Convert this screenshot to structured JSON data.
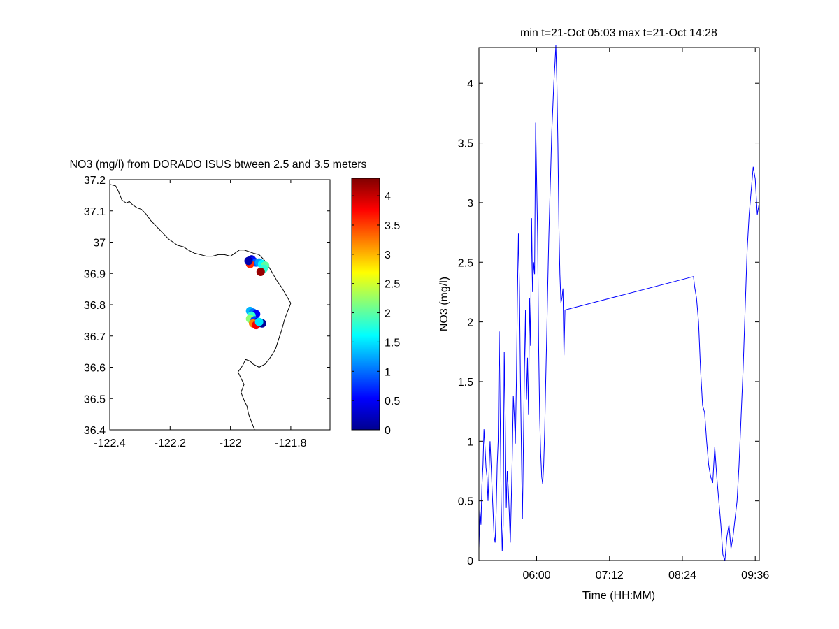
{
  "chart_data": [
    {
      "type": "scatter",
      "title": "NO3 (mg/l) from DORADO ISUS btween 2.5 and 3.5 meters",
      "xlabel": "",
      "ylabel": "",
      "xlim": [
        -122.4,
        -121.67
      ],
      "ylim": [
        36.4,
        37.2
      ],
      "x_ticks": [
        "-122.4",
        "-122.2",
        "-122",
        "-121.8"
      ],
      "y_ticks": [
        "36.4",
        "36.5",
        "36.6",
        "36.7",
        "36.8",
        "36.9",
        "37",
        "37.1",
        "37.2"
      ],
      "colorbar": {
        "range": [
          0,
          4.3
        ],
        "ticks": [
          "0",
          "0.5",
          "1",
          "1.5",
          "2",
          "2.5",
          "3",
          "3.5",
          "4"
        ],
        "colormap": "jet"
      },
      "coastline": [
        [
          -122.4,
          37.185
        ],
        [
          -122.38,
          37.18
        ],
        [
          -122.37,
          37.16
        ],
        [
          -122.36,
          37.135
        ],
        [
          -122.345,
          37.125
        ],
        [
          -122.335,
          37.13
        ],
        [
          -122.325,
          37.12
        ],
        [
          -122.31,
          37.11
        ],
        [
          -122.295,
          37.105
        ],
        [
          -122.28,
          37.09
        ],
        [
          -122.265,
          37.07
        ],
        [
          -122.25,
          37.055
        ],
        [
          -122.235,
          37.04
        ],
        [
          -122.22,
          37.025
        ],
        [
          -122.205,
          37.01
        ],
        [
          -122.19,
          37.0
        ],
        [
          -122.175,
          36.99
        ],
        [
          -122.155,
          36.985
        ],
        [
          -122.14,
          36.975
        ],
        [
          -122.12,
          36.965
        ],
        [
          -122.1,
          36.96
        ],
        [
          -122.08,
          36.955
        ],
        [
          -122.06,
          36.955
        ],
        [
          -122.04,
          36.96
        ],
        [
          -122.02,
          36.96
        ],
        [
          -122.0,
          36.955
        ],
        [
          -121.985,
          36.965
        ],
        [
          -121.97,
          36.975
        ],
        [
          -121.955,
          36.975
        ],
        [
          -121.94,
          36.97
        ],
        [
          -121.925,
          36.965
        ],
        [
          -121.905,
          36.96
        ],
        [
          -121.89,
          36.945
        ],
        [
          -121.875,
          36.925
        ],
        [
          -121.86,
          36.9
        ],
        [
          -121.845,
          36.875
        ],
        [
          -121.83,
          36.855
        ],
        [
          -121.815,
          36.83
        ],
        [
          -121.8,
          36.805
        ],
        [
          -121.81,
          36.78
        ],
        [
          -121.82,
          36.755
        ],
        [
          -121.83,
          36.72
        ],
        [
          -121.84,
          36.69
        ],
        [
          -121.85,
          36.66
        ],
        [
          -121.865,
          36.635
        ],
        [
          -121.885,
          36.61
        ],
        [
          -121.905,
          36.6
        ],
        [
          -121.925,
          36.61
        ],
        [
          -121.935,
          36.62
        ],
        [
          -121.95,
          36.625
        ],
        [
          -121.96,
          36.605
        ],
        [
          -121.975,
          36.585
        ],
        [
          -121.965,
          36.565
        ],
        [
          -121.955,
          36.545
        ],
        [
          -121.965,
          36.52
        ],
        [
          -121.955,
          36.495
        ],
        [
          -121.945,
          36.475
        ],
        [
          -121.94,
          36.45
        ],
        [
          -121.93,
          36.425
        ],
        [
          -121.92,
          36.4
        ]
      ],
      "points": [
        {
          "lon": -121.93,
          "lat": 36.945,
          "v": 0.3
        },
        {
          "lon": -121.925,
          "lat": 36.94,
          "v": 0.6
        },
        {
          "lon": -121.915,
          "lat": 36.935,
          "v": 0.9
        },
        {
          "lon": -121.905,
          "lat": 36.935,
          "v": 1.2
        },
        {
          "lon": -121.895,
          "lat": 36.93,
          "v": 1.6
        },
        {
          "lon": -121.885,
          "lat": 36.925,
          "v": 2.0
        },
        {
          "lon": -121.89,
          "lat": 36.915,
          "v": 1.8
        },
        {
          "lon": -121.9,
          "lat": 36.905,
          "v": 4.2
        },
        {
          "lon": -121.935,
          "lat": 36.93,
          "v": 3.6
        },
        {
          "lon": -121.94,
          "lat": 36.94,
          "v": 0.2
        },
        {
          "lon": -121.935,
          "lat": 36.78,
          "v": 1.3
        },
        {
          "lon": -121.925,
          "lat": 36.775,
          "v": 1.0
        },
        {
          "lon": -121.915,
          "lat": 36.77,
          "v": 0.5
        },
        {
          "lon": -121.93,
          "lat": 36.765,
          "v": 1.8
        },
        {
          "lon": -121.935,
          "lat": 36.755,
          "v": 2.2
        },
        {
          "lon": -121.92,
          "lat": 36.75,
          "v": 0.8
        },
        {
          "lon": -121.91,
          "lat": 36.745,
          "v": 0.3
        },
        {
          "lon": -121.925,
          "lat": 36.74,
          "v": 3.2
        },
        {
          "lon": -121.915,
          "lat": 36.735,
          "v": 3.8
        },
        {
          "lon": -121.895,
          "lat": 36.74,
          "v": 0.1
        },
        {
          "lon": -121.905,
          "lat": 36.745,
          "v": 1.5
        }
      ]
    },
    {
      "type": "line",
      "title": "min t=21-Oct 05:03 max t=21-Oct 14:28",
      "xlabel": "Time (HH:MM)",
      "ylabel": "NO3 (mg/l)",
      "xlim": [
        "05:03",
        "09:40"
      ],
      "ylim": [
        0,
        4.3
      ],
      "x_ticks": [
        "06:00",
        "07:12",
        "08:24",
        "09:36"
      ],
      "y_ticks": [
        "0",
        "0.5",
        "1",
        "1.5",
        "2",
        "2.5",
        "3",
        "3.5",
        "4"
      ],
      "color": "#0000ff",
      "series": [
        {
          "x": [
            "05:03",
            "05:04",
            "05:05",
            "05:06",
            "05:07",
            "05:08",
            "05:09",
            "05:10",
            "05:11",
            "05:12",
            "05:13",
            "05:14",
            "05:15",
            "05:16",
            "05:17",
            "05:18",
            "05:19",
            "05:20",
            "05:21",
            "05:22",
            "05:23",
            "05:24",
            "05:25",
            "05:26",
            "05:27",
            "05:28",
            "05:29",
            "05:30",
            "05:31",
            "05:32",
            "05:33",
            "05:34",
            "05:35",
            "05:36",
            "05:37",
            "05:38",
            "05:39",
            "05:40",
            "05:41",
            "05:42",
            "05:43",
            "05:44",
            "05:45",
            "05:46",
            "05:47",
            "05:48",
            "05:49",
            "05:50",
            "05:51",
            "05:52",
            "05:53",
            "05:54",
            "05:55",
            "05:56",
            "05:57",
            "05:58",
            "05:59",
            "06:00",
            "06:01",
            "06:02",
            "06:03",
            "06:04",
            "06:05",
            "06:06",
            "06:07",
            "06:08",
            "06:09",
            "06:10",
            "06:11",
            "06:12",
            "06:13",
            "06:14",
            "06:15",
            "06:16",
            "06:17",
            "06:18",
            "06:19",
            "06:20",
            "06:21",
            "06:22",
            "06:23",
            "06:24",
            "06:25",
            "06:26",
            "06:27",
            "06:28",
            "08:35",
            "08:36",
            "08:38",
            "08:40",
            "08:42",
            "08:44",
            "08:46",
            "08:48",
            "08:50",
            "08:52",
            "08:54",
            "08:56",
            "08:58",
            "09:00",
            "09:02",
            "09:04",
            "09:06",
            "09:08",
            "09:10",
            "09:12",
            "09:14",
            "09:16",
            "09:18",
            "09:20",
            "09:22",
            "09:24",
            "09:26",
            "09:28",
            "09:30",
            "09:32",
            "09:34",
            "09:36",
            "09:38",
            "09:40"
          ],
          "y": [
            0.1,
            0.42,
            0.3,
            0.63,
            0.8,
            1.1,
            0.95,
            0.78,
            0.7,
            0.5,
            0.75,
            1.0,
            0.8,
            0.6,
            0.4,
            0.2,
            0.15,
            0.4,
            0.8,
            1.0,
            1.92,
            1.2,
            0.5,
            0.08,
            0.3,
            1.75,
            1.2,
            0.44,
            0.75,
            0.6,
            0.4,
            0.15,
            0.5,
            0.9,
            1.38,
            1.2,
            0.98,
            1.5,
            2.2,
            2.74,
            2.3,
            1.5,
            0.9,
            0.35,
            1.0,
            1.6,
            2.1,
            1.35,
            1.7,
            1.22,
            2.2,
            1.8,
            2.87,
            2.25,
            2.5,
            2.4,
            3.67,
            3.2,
            2.7,
            1.8,
            1.2,
            0.9,
            0.7,
            0.64,
            0.8,
            1.1,
            1.5,
            1.9,
            2.3,
            2.7,
            3.0,
            3.3,
            3.6,
            3.8,
            4.0,
            4.15,
            4.32,
            4.0,
            3.5,
            2.8,
            2.4,
            2.16,
            2.2,
            2.28,
            1.72,
            2.1,
            2.38,
            2.3,
            2.2,
            2.0,
            1.6,
            1.3,
            1.24,
            1.0,
            0.8,
            0.7,
            0.65,
            0.95,
            0.7,
            0.5,
            0.3,
            0.05,
            0.0,
            0.2,
            0.3,
            0.1,
            0.2,
            0.35,
            0.5,
            0.8,
            1.2,
            1.6,
            2.1,
            2.6,
            2.9,
            3.1,
            3.3,
            3.2,
            2.9,
            3.0
          ]
        }
      ]
    }
  ]
}
